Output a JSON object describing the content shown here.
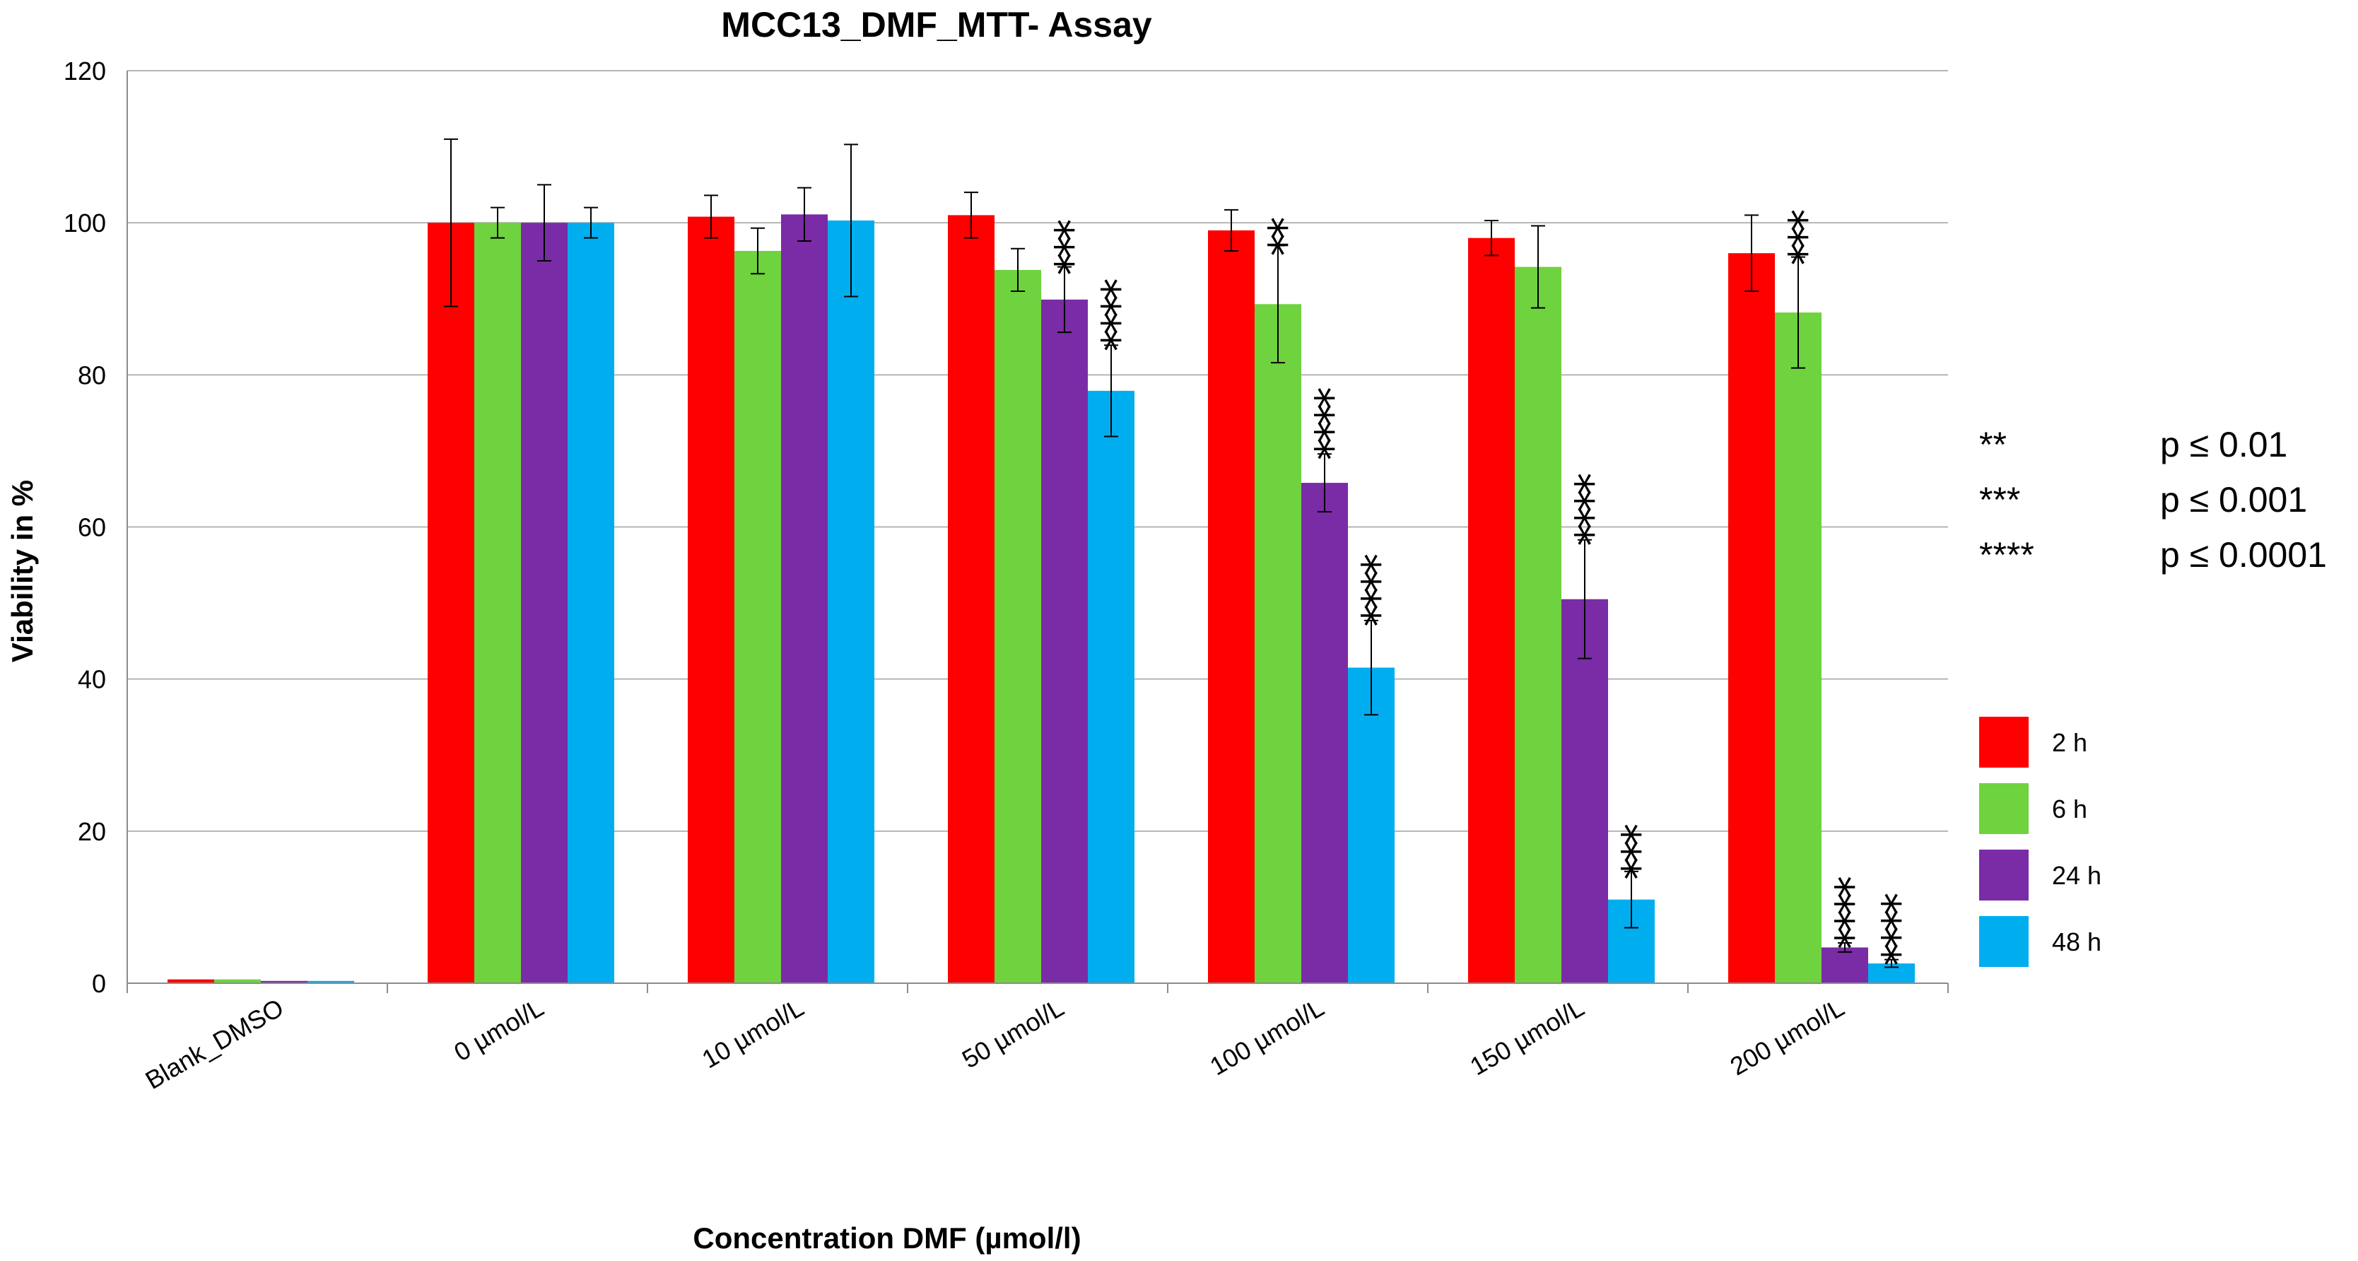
{
  "chart_data": {
    "type": "bar",
    "title": "MCC13_DMF_MTT- Assay",
    "xlabel": "Concentration DMF (µmol/l)",
    "ylabel": "Viability in %",
    "ylim": [
      0,
      120
    ],
    "yticks": [
      "0",
      "20",
      "40",
      "60",
      "80",
      "100",
      "120"
    ],
    "grid": true,
    "legend_position": "right",
    "categories": [
      "Blank_DMSO",
      "0 µmol/L",
      "10 µmol/L",
      "50 µmol/L",
      "100 µmol/L",
      "150 µmol/L",
      "200 µmol/L"
    ],
    "series": [
      {
        "name": "2 h",
        "color": "#ff0000",
        "values": [
          0.5,
          100,
          100.8,
          101,
          99,
          98,
          96
        ],
        "errors": [
          0.1,
          11,
          2.8,
          3,
          2.7,
          2.3,
          5
        ]
      },
      {
        "name": "6 h",
        "color": "#6fd23f",
        "values": [
          0.5,
          100,
          96.3,
          93.8,
          89.3,
          94.2,
          88.2
        ],
        "errors": [
          0.1,
          2,
          3,
          2.8,
          7.7,
          5.4,
          7.3
        ]
      },
      {
        "name": "24 h",
        "color": "#7a2ba6",
        "values": [
          0.3,
          100,
          101.1,
          89.9,
          65.8,
          50.5,
          4.7
        ],
        "errors": [
          0.1,
          5,
          3.5,
          4.3,
          3.8,
          7.8,
          0.6
        ]
      },
      {
        "name": "48 h",
        "color": "#00aeef",
        "values": [
          0.3,
          100,
          100.3,
          77.9,
          41.5,
          11,
          2.6
        ],
        "errors": [
          0.1,
          2,
          10,
          6,
          6.2,
          3.7,
          0.5
        ]
      }
    ],
    "significance": [
      {
        "category": "50 µmol/L",
        "series": "24 h",
        "label": "***"
      },
      {
        "category": "50 µmol/L",
        "series": "48 h",
        "label": "****"
      },
      {
        "category": "100 µmol/L",
        "series": "6 h",
        "label": "**"
      },
      {
        "category": "100 µmol/L",
        "series": "24 h",
        "label": "****"
      },
      {
        "category": "100 µmol/L",
        "series": "48 h",
        "label": "****"
      },
      {
        "category": "150 µmol/L",
        "series": "24 h",
        "label": "****"
      },
      {
        "category": "150 µmol/L",
        "series": "48 h",
        "label": "***"
      },
      {
        "category": "200 µmol/L",
        "series": "6 h",
        "label": "***"
      },
      {
        "category": "200 µmol/L",
        "series": "24 h",
        "label": "****"
      },
      {
        "category": "200 µmol/L",
        "series": "48 h",
        "label": "****"
      }
    ],
    "significance_key": [
      {
        "stars": "**",
        "p": "p ≤ 0.01"
      },
      {
        "stars": "***",
        "p": "p ≤ 0.001"
      },
      {
        "stars": "****",
        "p": "p ≤ 0.0001"
      }
    ]
  }
}
